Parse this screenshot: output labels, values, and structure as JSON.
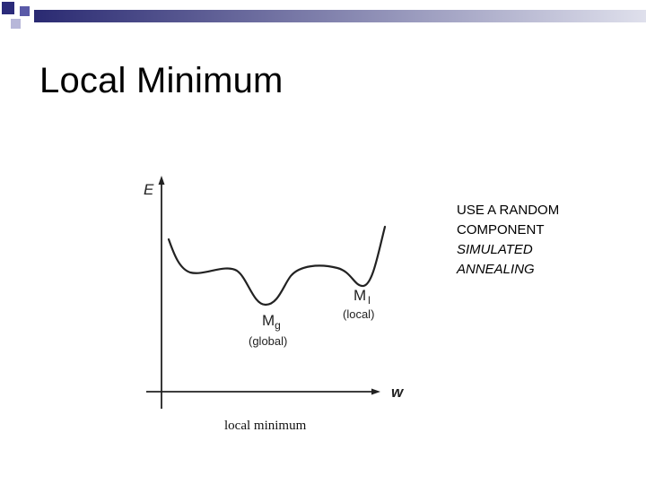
{
  "slide": {
    "title": "Local Minimum"
  },
  "header": {
    "square_colors": [
      "#2b2b7a",
      "#5a5aa8",
      "#b7b7d9"
    ],
    "bar_gradient": [
      "#2a2a72",
      "#dfe0ec"
    ]
  },
  "diagram": {
    "y_axis_label": "E",
    "x_axis_label": "w",
    "global_min_label": "M",
    "global_min_subscript": "g",
    "global_min_note": "(global)",
    "local_min_label": "M",
    "local_min_subscript": "l",
    "local_min_note": "(local)",
    "caption": "local minimum"
  },
  "notes": {
    "line1": "USE A RANDOM",
    "line2": "COMPONENT",
    "line3": "SIMULATED",
    "line4": "ANNEALING"
  }
}
